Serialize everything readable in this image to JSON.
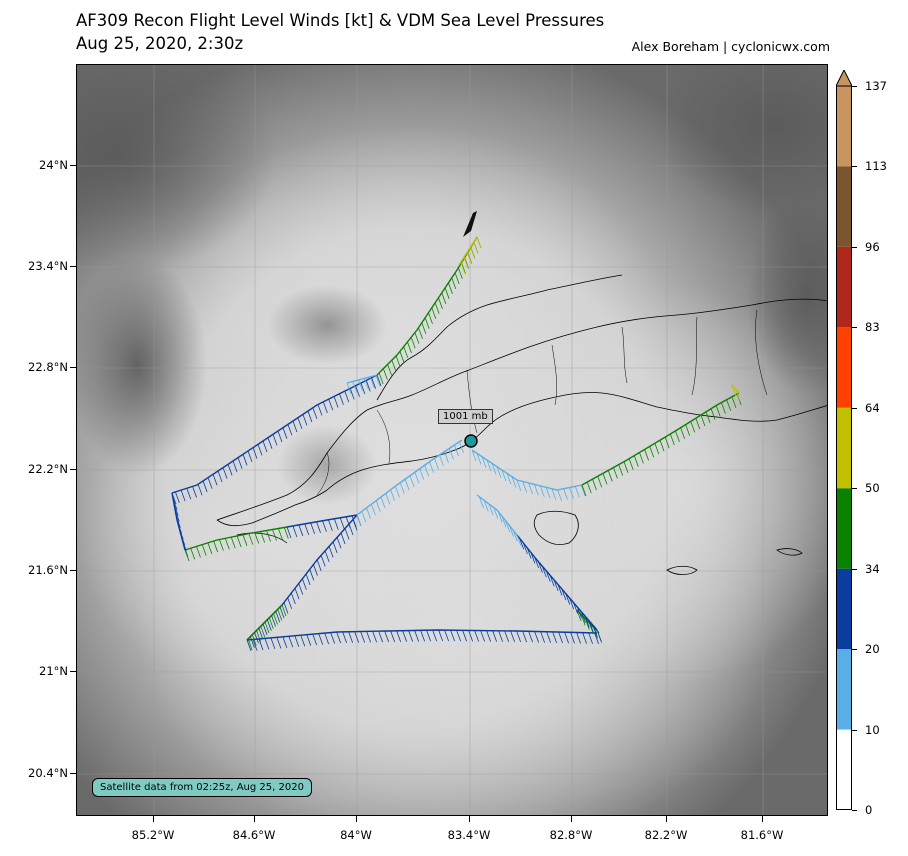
{
  "title": {
    "line1": "AF309 Recon Flight Level Winds [kt] & VDM Sea Level Pressures",
    "line2": "Aug 25, 2020, 2:30z",
    "credit": "Alex Boreham | cyclonicwx.com"
  },
  "map": {
    "lat_labels": [
      "24°N",
      "23.4°N",
      "22.8°N",
      "22.2°N",
      "21.6°N",
      "21°N",
      "20.4°N"
    ],
    "lon_labels": [
      "85.2°W",
      "84.6°W",
      "84°W",
      "83.4°W",
      "82.8°W",
      "82.2°W",
      "81.6°W"
    ],
    "satellite_label": "Satellite data from 02:25z, Aug 25, 2020",
    "vdm_pressure_label": "1001 mb"
  },
  "colorbar": {
    "labels": [
      "0",
      "10",
      "20",
      "34",
      "50",
      "64",
      "83",
      "96",
      "113",
      "137"
    ],
    "colors": [
      "#ffffff",
      "#5aaee8",
      "#0a3d9e",
      "#0a8200",
      "#c0c000",
      "#ff4000",
      "#b0281c",
      "#7a5530",
      "#c89460"
    ]
  },
  "colors": {
    "barb_light_blue": "#5aaee8",
    "barb_dark_blue": "#0a3d9e",
    "barb_green": "#0a8200",
    "barb_yellow": "#c0c000",
    "center_marker": "#1a9c9c"
  }
}
